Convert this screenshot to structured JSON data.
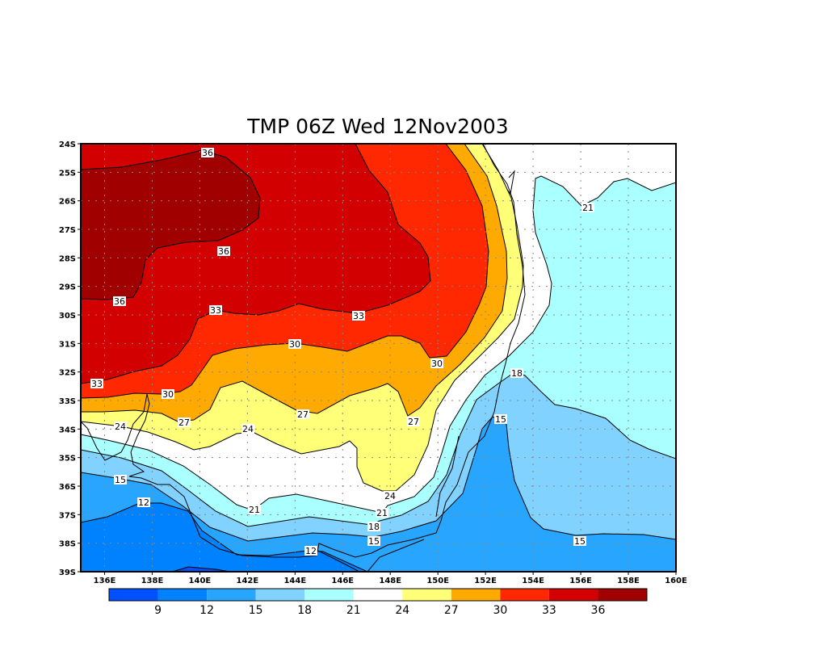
{
  "title": "TMP 06Z Wed 12Nov2003",
  "map": {
    "variable": "TMP",
    "lon_range": [
      135,
      160
    ],
    "lat_range": [
      -39,
      -24
    ],
    "lon_ticks": [
      "136E",
      "138E",
      "140E",
      "142E",
      "144E",
      "146E",
      "148E",
      "150E",
      "152E",
      "154E",
      "156E",
      "158E",
      "160E"
    ],
    "lat_ticks": [
      "24S",
      "25S",
      "26S",
      "27S",
      "28S",
      "29S",
      "30S",
      "31S",
      "32S",
      "33S",
      "34S",
      "35S",
      "36S",
      "37S",
      "38S",
      "39S"
    ],
    "contour_levels": [
      9,
      12,
      15,
      18,
      21,
      24,
      27,
      30,
      33,
      36
    ],
    "contour_labels": [
      "36",
      "36",
      "36",
      "33",
      "33",
      "33",
      "30",
      "30",
      "30",
      "27",
      "27",
      "27",
      "24",
      "24",
      "24",
      "21",
      "21",
      "21",
      "18",
      "18",
      "15",
      "15",
      "15",
      "15",
      "12",
      "12"
    ]
  },
  "colorbar": {
    "labels": [
      "9",
      "12",
      "15",
      "18",
      "21",
      "24",
      "27",
      "30",
      "33",
      "36"
    ],
    "colors": [
      "#0050ff",
      "#0082ff",
      "#28a5ff",
      "#82d2ff",
      "#aaffff",
      "#ffffff",
      "#ffff78",
      "#ffaa00",
      "#ff2800",
      "#d20000",
      "#a00000"
    ]
  }
}
